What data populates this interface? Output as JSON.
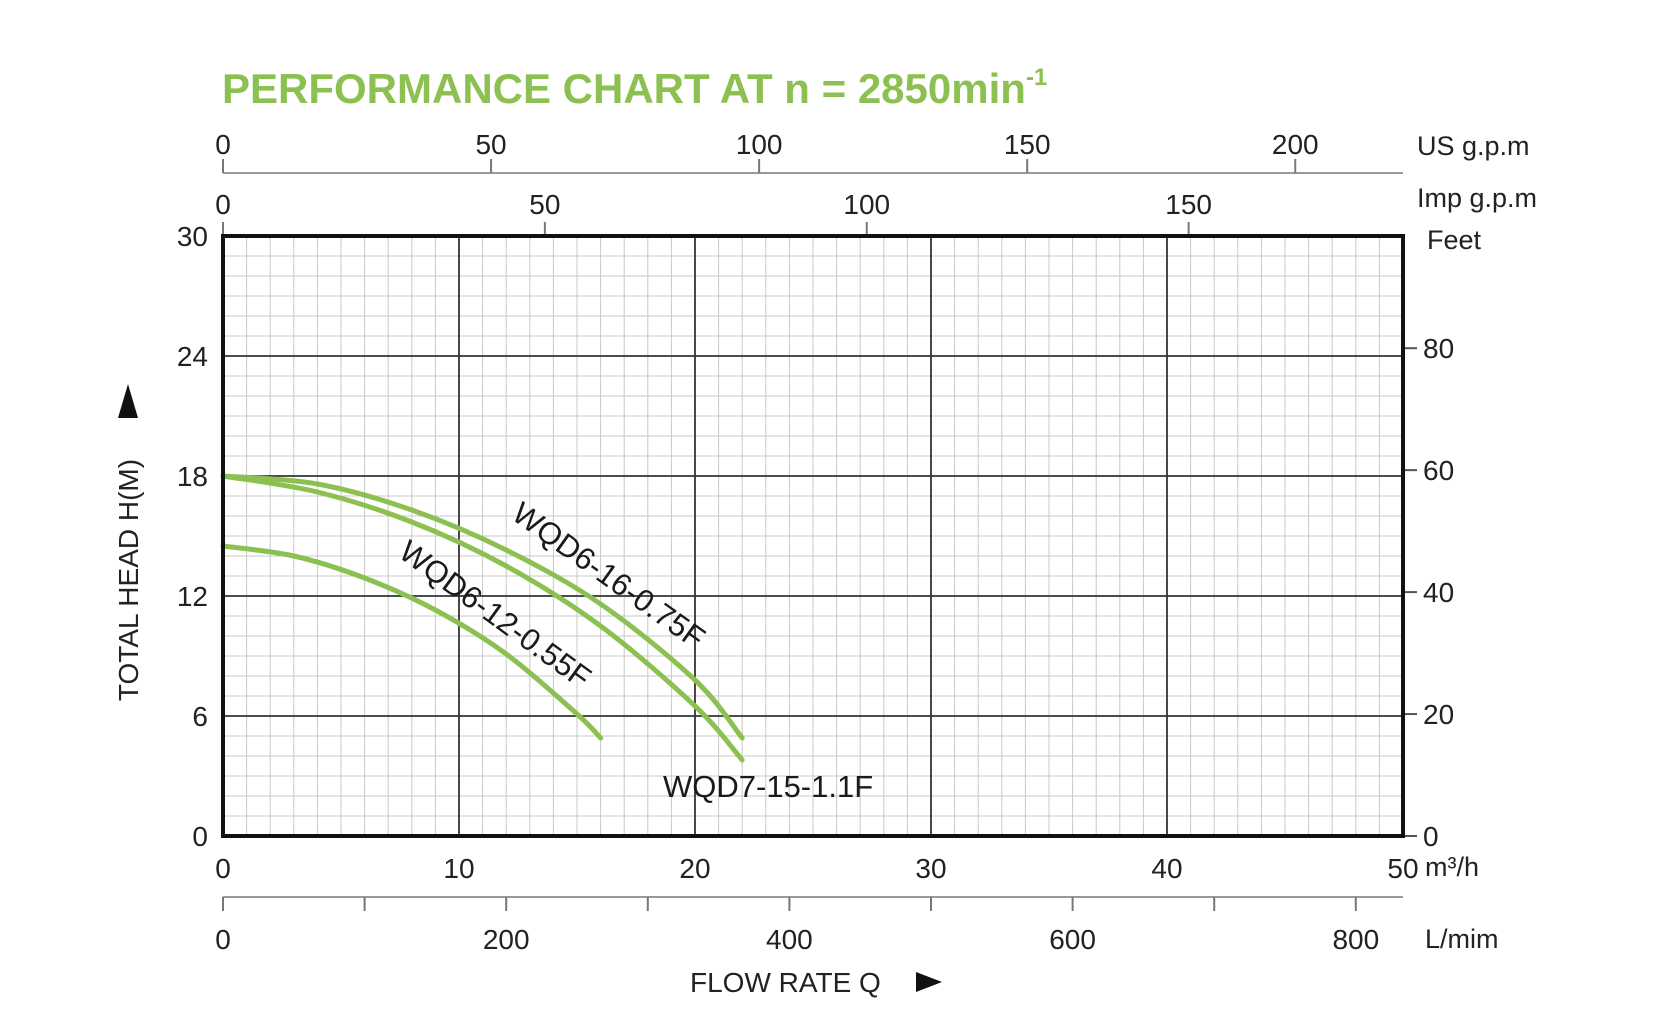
{
  "chart_data": {
    "type": "line",
    "title": "PERFORMANCE CHART AT n = 2850min",
    "title_superscript": "-1",
    "xlabel": "FLOW RATE Q",
    "ylabel": "TOTAL HEAD H(M)",
    "xlim": [
      0,
      50
    ],
    "ylim": [
      0,
      30
    ],
    "grid": true,
    "axes": {
      "x_primary": {
        "unit": "m³/h",
        "ticks": [
          "0",
          "10",
          "20",
          "30",
          "40",
          "50"
        ],
        "values": [
          0,
          10,
          20,
          30,
          40,
          50
        ]
      },
      "x_lpm": {
        "unit": "L/mim",
        "ticks": [
          "0",
          "200",
          "400",
          "600",
          "800"
        ],
        "values": [
          0,
          200,
          400,
          600,
          800
        ],
        "max": 833.33
      },
      "x_usgpm": {
        "unit": "US g.p.m",
        "ticks": [
          "0",
          "50",
          "100",
          "150",
          "200"
        ],
        "values": [
          0,
          50,
          100,
          150,
          200
        ],
        "max": 220.1
      },
      "x_impgpm": {
        "unit": "Imp g.p.m",
        "ticks": [
          "0",
          "50",
          "100",
          "150"
        ],
        "values": [
          0,
          50,
          100,
          150
        ],
        "max": 183.3
      },
      "y_primary": {
        "ticks": [
          "0",
          "6",
          "12",
          "18",
          "24",
          "30"
        ],
        "values": [
          0,
          6,
          12,
          18,
          24,
          30
        ]
      },
      "y_feet": {
        "unit": "Feet",
        "ticks": [
          "0",
          "20",
          "40",
          "60",
          "80"
        ],
        "values": [
          0,
          20,
          40,
          60,
          80
        ],
        "max": 98.4
      }
    },
    "series": [
      {
        "name": "WQD6-16-0.75F",
        "x": [
          0,
          4,
          8,
          12,
          16,
          20,
          22
        ],
        "y": [
          18.0,
          17.6,
          16.3,
          14.3,
          11.6,
          7.8,
          4.9
        ],
        "color": "#8cc152"
      },
      {
        "name": "WQD7-15-1.1F",
        "x": [
          0,
          4,
          8,
          12,
          16,
          20,
          22
        ],
        "y": [
          18.0,
          17.2,
          15.7,
          13.5,
          10.5,
          6.5,
          3.8
        ],
        "color": "#8cc152"
      },
      {
        "name": "WQD6-12-0.55F",
        "x": [
          0,
          3,
          6,
          9,
          12,
          15,
          16
        ],
        "y": [
          14.5,
          14.0,
          12.9,
          11.3,
          9.1,
          6.1,
          4.9
        ],
        "color": "#8cc152"
      }
    ]
  }
}
